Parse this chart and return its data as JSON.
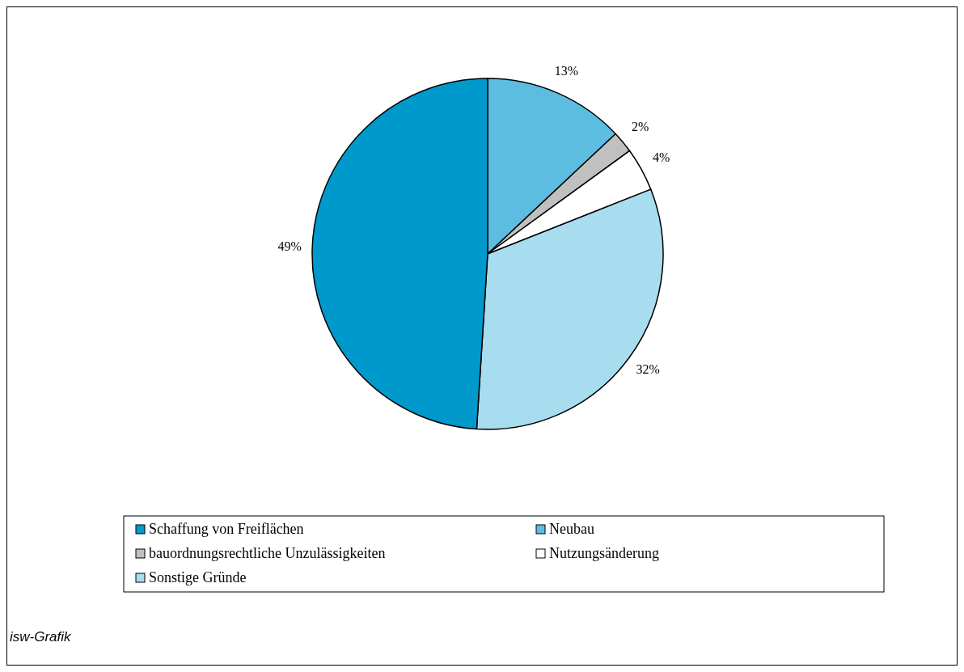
{
  "chart_data": {
    "type": "pie",
    "categories": [
      "Neubau",
      "bauordnungsrechtliche Unzulässigkeiten",
      "Nutzungsänderung",
      "Sonstige Gründe",
      "Schaffung von Freiflächen"
    ],
    "values": [
      13,
      2,
      4,
      32,
      49
    ],
    "colors": [
      "#5cbde0",
      "#c0c0c0",
      "#ffffff",
      "#a8dcef",
      "#0099cc"
    ],
    "value_labels": [
      "13%",
      "2%",
      "4%",
      "32%",
      "49%"
    ],
    "legend": "bottom",
    "annotations": [
      "isw-Grafik"
    ]
  }
}
